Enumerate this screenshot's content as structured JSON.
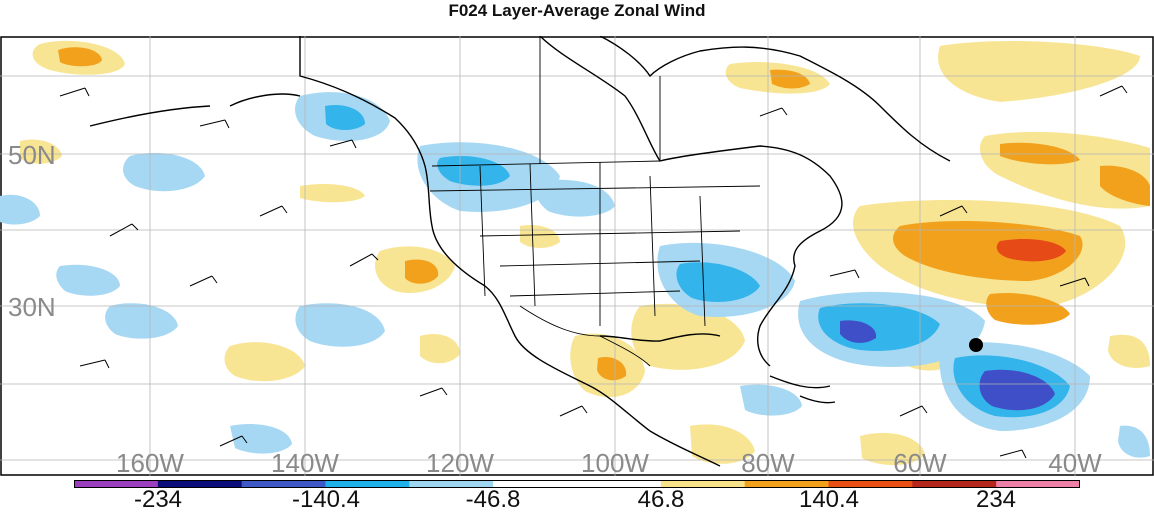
{
  "title": "F024 Layer-Average Zonal Wind",
  "lat_labels": [
    "50N",
    "30N"
  ],
  "lon_labels": [
    "160W",
    "140W",
    "120W",
    "100W",
    "80W",
    "60W",
    "40W"
  ],
  "colorbar": {
    "colors": [
      "#9b3fbf",
      "#0b0e7a",
      "#3e58c8",
      "#1fb2ea",
      "#9fd6f2",
      "#ffffff",
      "#ffffff",
      "#f8e38a",
      "#f2a11d",
      "#ea4f14",
      "#b3271c",
      "#ee7fa6"
    ],
    "labels": [
      "-234",
      "-140.4",
      "-46.8",
      "46.8",
      "140.4",
      "234"
    ]
  },
  "map_colors": {
    "coast": "#000000",
    "grid": "#b5b5b5",
    "light_blue": "#a7d8f3",
    "mid_blue": "#33b4ea",
    "dark_blue": "#3e4fc7",
    "yellow": "#f8e594",
    "orange": "#f2a11d",
    "red": "#e64a16"
  }
}
